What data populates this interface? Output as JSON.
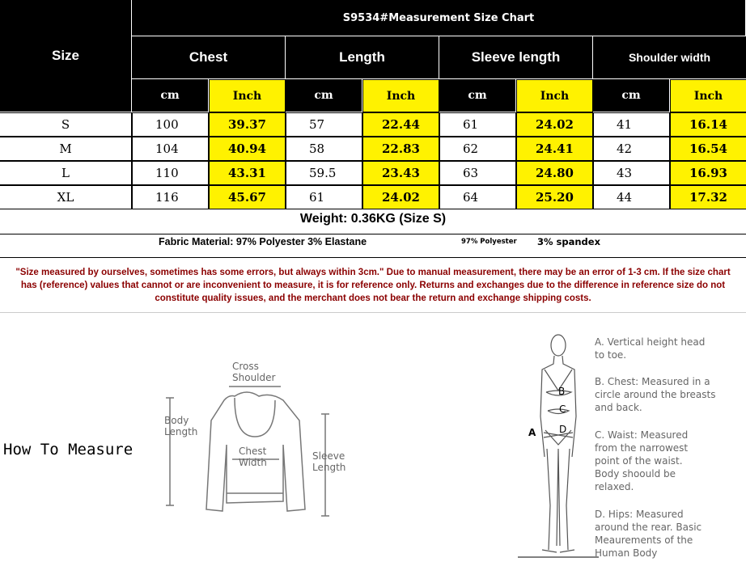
{
  "chart": {
    "title": "S9534#Measurement Size Chart",
    "size_header": "Size",
    "columns": [
      "Chest",
      "Length",
      "Sleeve length",
      "Shoulder width"
    ],
    "units": [
      "cm",
      "Inch"
    ],
    "rows": [
      {
        "size": "S",
        "values": [
          "100",
          "39.37",
          "57",
          "22.44",
          "61",
          "24.02",
          "41",
          "16.14"
        ]
      },
      {
        "size": "M",
        "values": [
          "104",
          "40.94",
          "58",
          "22.83",
          "62",
          "24.41",
          "42",
          "16.54"
        ]
      },
      {
        "size": "L",
        "values": [
          "110",
          "43.31",
          "59.5",
          "23.43",
          "63",
          "24.80",
          "43",
          "16.93"
        ]
      },
      {
        "size": "XL",
        "values": [
          "116",
          "45.67",
          "61",
          "24.02",
          "64",
          "25.20",
          "44",
          "17.32"
        ]
      }
    ]
  },
  "weight": "Weight: 0.36KG (Size S)",
  "fabric": {
    "main": "Fabric Material: 97% Polyester 3% Elastane",
    "polyester": "97% Polyester",
    "spandex": "3% spandex"
  },
  "note": "\"Size measured by ourselves, sometimes has some errors, but always within 3cm.\" Due to manual measurement, there may be an error of 1-3 cm. If the size chart has (reference) values that cannot or are inconvenient to measure, it is for reference only. Returns and exchanges due to the difference in reference size do not constitute quality issues, and the merchant does not bear the return and exchange shipping costs.",
  "how_to": {
    "title": "How To Measure",
    "cross_shoulder": "Cross Shoulder",
    "body_length": "Body Length",
    "chest_width": "Chest Width",
    "sleeve_length": "Sleeve Length"
  },
  "body": {
    "letters": [
      "A",
      "B",
      "C",
      "D"
    ],
    "a": "A. Vertical height head to toe.",
    "b": "B. Chest: Measured in a circle around the breasts and back.",
    "c": "C. Waist: Measured from the narrowest point of the waist. Body shoould be relaxed.",
    "d": "D. Hips: Measured around the rear. Basic Meaurements of the Human Body"
  },
  "colors": {
    "highlight": "#fff200",
    "header": "#000000",
    "note": "#8b0000"
  }
}
